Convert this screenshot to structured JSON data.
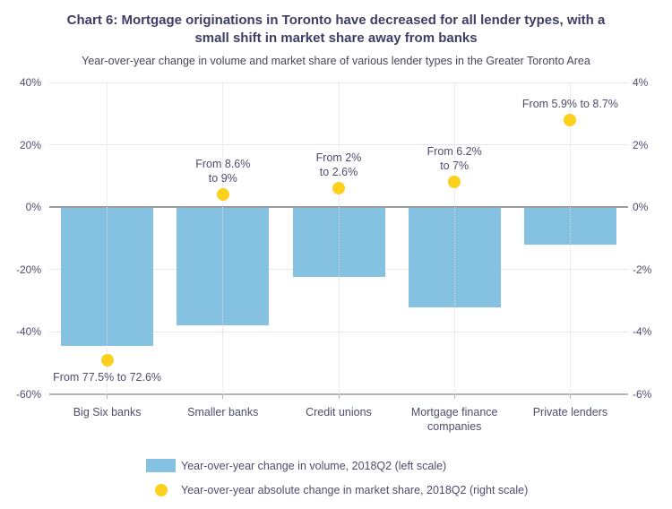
{
  "chart": {
    "title": "Chart 6: Mortgage originations in Toronto have decreased for all lender types, with a small shift in market share away from banks",
    "subtitle": "Year-over-year change in volume and market share of various lender types in the Greater Toronto Area"
  },
  "chart_data": {
    "type": "bar",
    "categories": [
      "Big Six banks",
      "Smaller banks",
      "Credit unions",
      "Mortgage finance companies",
      "Private lenders"
    ],
    "series": [
      {
        "name": "Year-over-year change in volume, 2018Q2 (left scale)",
        "type": "bar",
        "axis": "left",
        "color": "#85C1E1",
        "values": [
          -44.5,
          -38,
          -22.5,
          -32,
          -12
        ]
      },
      {
        "name": "Year-over-year absolute change in market share, 2018Q2 (right scale)",
        "type": "point",
        "axis": "right",
        "color": "#FDD01E",
        "values": [
          -4.9,
          0.4,
          0.6,
          0.8,
          2.8
        ]
      }
    ],
    "annotations": [
      {
        "lines": [
          "From 77.5% to 72.6%"
        ],
        "placement": "below"
      },
      {
        "lines": [
          "From 8.6%",
          "to 9%"
        ],
        "placement": "above"
      },
      {
        "lines": [
          "From 2%",
          "to 2.6%"
        ],
        "placement": "above"
      },
      {
        "lines": [
          "From 6.2%",
          "to 7%"
        ],
        "placement": "above"
      },
      {
        "lines": [
          "From 5.9% to 8.7%"
        ],
        "placement": "above"
      }
    ],
    "left_axis": {
      "range": [
        -60,
        40
      ],
      "tick_values": [
        40,
        20,
        0,
        -20,
        -40,
        -60
      ],
      "ticks": [
        "40%",
        "20%",
        "0%",
        "-20%",
        "-40%",
        "-60%"
      ]
    },
    "right_axis": {
      "range": [
        -6,
        4
      ],
      "tick_values": [
        4,
        2,
        0,
        -2,
        -4,
        -6
      ],
      "ticks": [
        "4%",
        "2%",
        "0%",
        "-2%",
        "-4%",
        "-6%"
      ]
    },
    "grid": true,
    "legend_position": "bottom-left",
    "colors": {
      "bar": "#85C1E1",
      "marker": "#FDD01E",
      "title_text": "#3d3d66",
      "axis_text": "#4d4d6d"
    }
  }
}
